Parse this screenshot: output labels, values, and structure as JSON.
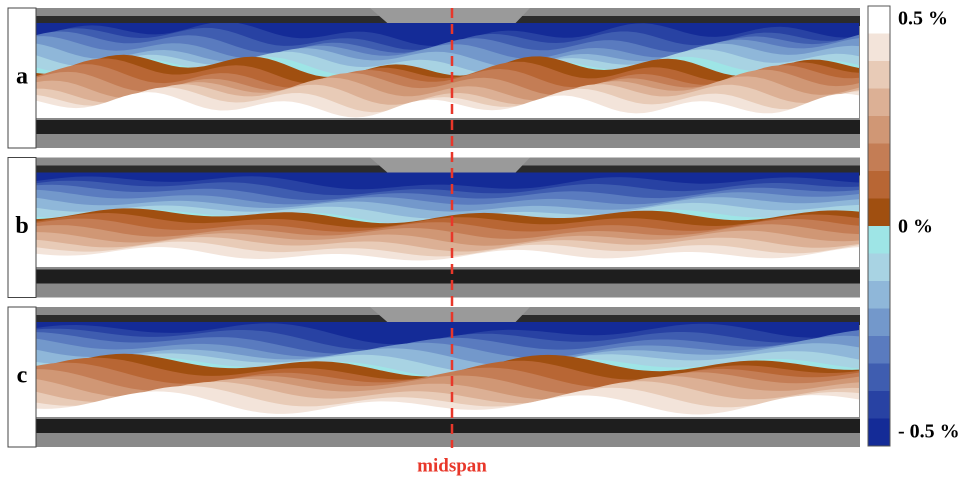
{
  "panels": [
    {
      "label": "a"
    },
    {
      "label": "b"
    },
    {
      "label": "c"
    }
  ],
  "colorbar": {
    "top_label": "0.5 %",
    "middle_label": "0 %",
    "bottom_label": "- 0.5 %"
  },
  "annotation": "midspan"
}
